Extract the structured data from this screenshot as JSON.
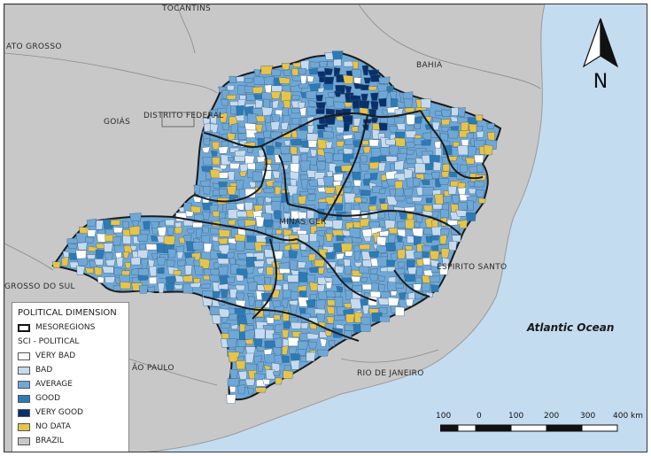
{
  "map": {
    "labels": {
      "tocantins": "TOCANTINS",
      "mato_grosso": "ATO GROSSO",
      "bahia": "BAHIA",
      "goias": "GOIÁS",
      "distrito_federal": "DISTRITO FEDERAL",
      "minas_gerais": "MINAS GER",
      "espirito_santo": "ESPIRITO SANTO",
      "mato_grosso_sul": "GROSSO DO SUL",
      "sao_paulo": "ÃO PAULO",
      "rio_de_janeiro": "RIO DE JANEIRO",
      "ocean": "Atlantic Ocean"
    },
    "north_arrow_label": "N",
    "colors": {
      "very_bad": "#ffffff",
      "bad": "#c6dbef",
      "average": "#6fa8d6",
      "good": "#2c7bb6",
      "very_good": "#08306b",
      "no_data": "#e6c44a",
      "brazil": "#c8c8c8",
      "ocean": "#c4dcef",
      "mesoregion_border": "#1a1a1a"
    }
  },
  "legend": {
    "title": "POLITICAL DIMENSION",
    "items": [
      {
        "label": "MESOREGIONS",
        "key": "mesoregions"
      },
      {
        "label": "SCI - POLITICAL",
        "key": "heading"
      },
      {
        "label": "VERY BAD",
        "key": "very_bad"
      },
      {
        "label": "BAD",
        "key": "bad"
      },
      {
        "label": "AVERAGE",
        "key": "average"
      },
      {
        "label": "GOOD",
        "key": "good"
      },
      {
        "label": "VERY GOOD",
        "key": "very_good"
      },
      {
        "label": "NO DATA",
        "key": "no_data"
      },
      {
        "label": "BRAZIL",
        "key": "brazil"
      }
    ]
  },
  "scale_bar": {
    "ticks": [
      "100",
      "0",
      "100",
      "200",
      "300",
      "400 km"
    ]
  }
}
